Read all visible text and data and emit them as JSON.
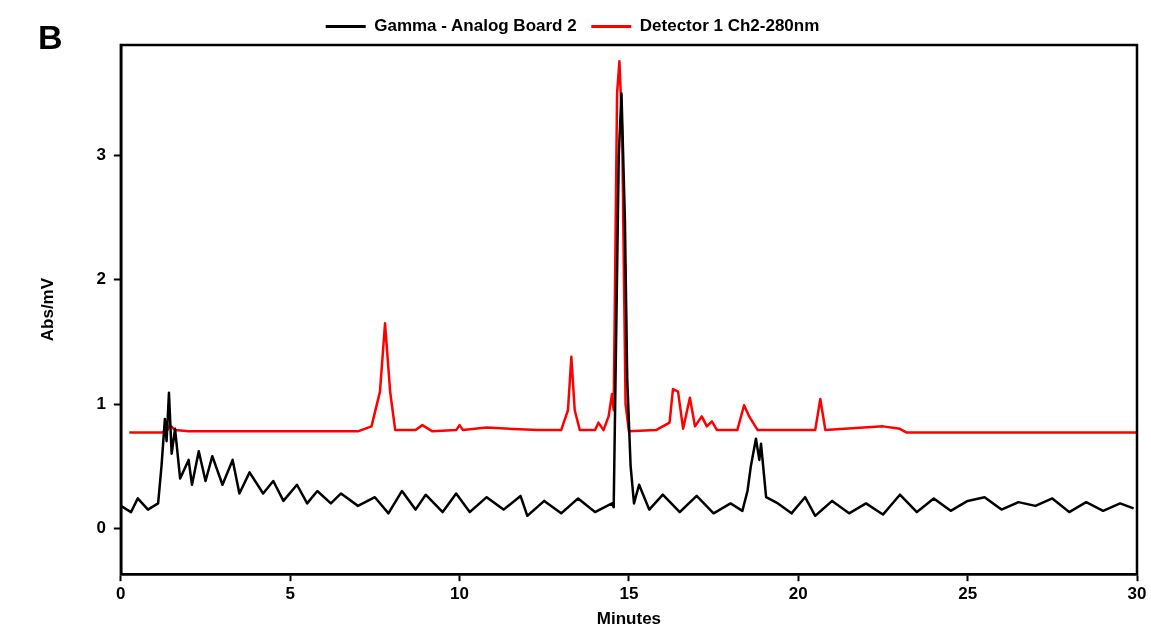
{
  "chart_data": {
    "type": "line",
    "xlabel": "Minutes",
    "ylabel": "Abs/mV",
    "annotations": [
      "B"
    ],
    "xlim": [
      0,
      30
    ],
    "xticks": [
      0,
      5,
      10,
      15,
      20,
      25,
      30
    ],
    "ylim": [
      -0.37,
      3.89
    ],
    "yticks": [
      0,
      1,
      2,
      3
    ],
    "grid": false,
    "legend": "top",
    "marker": "none",
    "line_style": "solid",
    "series": [
      {
        "name": "Gamma - Analog Board 2",
        "color": "#000000",
        "x": [
          0,
          0.3,
          0.5,
          0.8,
          1.1,
          1.2,
          1.3,
          1.35,
          1.42,
          1.5,
          1.6,
          1.75,
          2.0,
          2.1,
          2.3,
          2.5,
          2.7,
          3.0,
          3.3,
          3.5,
          3.8,
          4.2,
          4.5,
          4.8,
          5.2,
          5.5,
          5.8,
          6.2,
          6.5,
          7.0,
          7.5,
          7.9,
          8.3,
          8.7,
          9.0,
          9.5,
          9.9,
          10.3,
          10.8,
          11.3,
          11.8,
          12.0,
          12.5,
          13.0,
          13.5,
          14.0,
          14.5,
          14.55,
          14.62,
          14.7,
          14.78,
          14.88,
          14.95,
          15.05,
          15.15,
          15.3,
          15.6,
          16.0,
          16.5,
          17.0,
          17.5,
          18.0,
          18.35,
          18.5,
          18.6,
          18.75,
          18.85,
          18.9,
          19.05,
          19.4,
          19.8,
          20.2,
          20.5,
          21.0,
          21.5,
          22.0,
          22.5,
          23.0,
          23.5,
          24.0,
          24.5,
          25.0,
          25.5,
          26.0,
          26.5,
          27.0,
          27.5,
          28.0,
          28.5,
          29.0,
          29.5,
          29.9
        ],
        "values": [
          0.18,
          0.13,
          0.24,
          0.15,
          0.2,
          0.5,
          0.88,
          0.7,
          1.09,
          0.6,
          0.8,
          0.4,
          0.55,
          0.35,
          0.62,
          0.38,
          0.58,
          0.35,
          0.55,
          0.28,
          0.45,
          0.28,
          0.38,
          0.22,
          0.35,
          0.2,
          0.3,
          0.2,
          0.28,
          0.18,
          0.25,
          0.12,
          0.3,
          0.15,
          0.27,
          0.13,
          0.28,
          0.13,
          0.25,
          0.15,
          0.26,
          0.1,
          0.22,
          0.12,
          0.24,
          0.13,
          0.2,
          0.17,
          1.5,
          3.0,
          3.5,
          2.5,
          1.2,
          0.5,
          0.2,
          0.35,
          0.15,
          0.27,
          0.13,
          0.26,
          0.12,
          0.2,
          0.14,
          0.3,
          0.5,
          0.72,
          0.55,
          0.68,
          0.25,
          0.2,
          0.12,
          0.25,
          0.1,
          0.22,
          0.12,
          0.2,
          0.11,
          0.27,
          0.13,
          0.24,
          0.14,
          0.22,
          0.25,
          0.15,
          0.21,
          0.18,
          0.24,
          0.13,
          0.21,
          0.14,
          0.2,
          0.16
        ]
      },
      {
        "name": "Detector 1 Ch2-280nm",
        "color": "#ff0000",
        "x": [
          0.25,
          1.2,
          1.35,
          1.45,
          1.6,
          2.0,
          7.0,
          7.4,
          7.65,
          7.8,
          7.95,
          8.1,
          8.7,
          8.9,
          9.2,
          9.9,
          10.0,
          10.1,
          10.8,
          12.3,
          13.0,
          13.2,
          13.3,
          13.4,
          13.55,
          14.0,
          14.1,
          14.25,
          14.4,
          14.5,
          14.55,
          14.65,
          14.72,
          14.8,
          14.9,
          15.0,
          15.8,
          16.2,
          16.3,
          16.45,
          16.6,
          16.8,
          16.95,
          17.15,
          17.3,
          17.45,
          17.6,
          18.2,
          18.4,
          18.55,
          18.8,
          20.5,
          20.65,
          20.8,
          22.5,
          23.0,
          23.2,
          30
        ],
        "values": [
          0.77,
          0.77,
          0.78,
          0.83,
          0.79,
          0.78,
          0.78,
          0.82,
          1.1,
          1.65,
          1.1,
          0.79,
          0.79,
          0.83,
          0.78,
          0.79,
          0.83,
          0.79,
          0.81,
          0.79,
          0.79,
          0.95,
          1.38,
          0.95,
          0.79,
          0.79,
          0.85,
          0.79,
          0.9,
          1.08,
          0.95,
          3.5,
          3.76,
          3.2,
          1.0,
          0.78,
          0.79,
          0.85,
          1.12,
          1.1,
          0.8,
          1.05,
          0.82,
          0.9,
          0.82,
          0.86,
          0.79,
          0.79,
          0.99,
          0.9,
          0.79,
          0.79,
          1.04,
          0.79,
          0.82,
          0.8,
          0.77,
          0.77
        ]
      }
    ]
  }
}
